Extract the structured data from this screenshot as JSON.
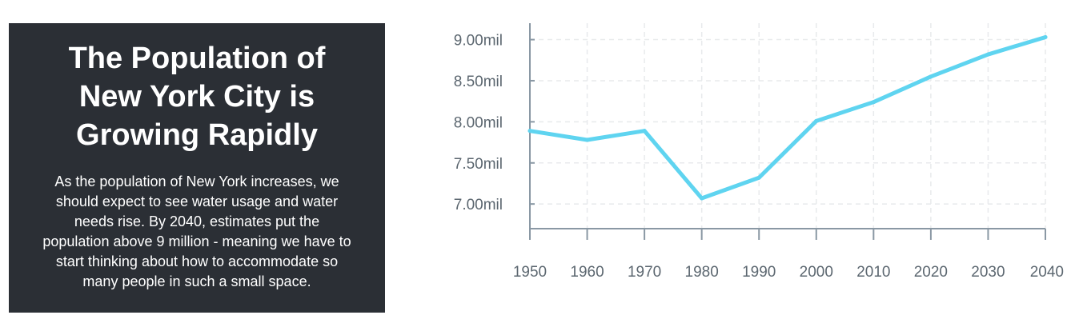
{
  "panel": {
    "title_lines": [
      "The Population of",
      "New York City is",
      "Growing Rapidly"
    ],
    "body": "As the population of New York increases, we should expect to see water usage and water needs rise. By 2040, estimates put the population above 9 million - meaning we have to start thinking about how to accommodate so many people in such a small space."
  },
  "chart_data": {
    "type": "line",
    "title": "",
    "xlabel": "",
    "ylabel": "",
    "x": [
      "1950",
      "1960",
      "1970",
      "1980",
      "1990",
      "2000",
      "2010",
      "2020",
      "2030",
      "2040"
    ],
    "series": [
      {
        "values": [
          7.89,
          7.78,
          7.89,
          7.07,
          7.32,
          8.01,
          8.24,
          8.55,
          8.82,
          9.03
        ]
      }
    ],
    "y_ticks": [
      {
        "value": 7.0,
        "label": "7.00mil"
      },
      {
        "value": 7.5,
        "label": "7.50mil"
      },
      {
        "value": 8.0,
        "label": "8.00mil"
      },
      {
        "value": 8.5,
        "label": "8.50mil"
      },
      {
        "value": 9.0,
        "label": "9.00mil"
      }
    ],
    "ylim": [
      6.7,
      9.2
    ],
    "grid": true,
    "legend": "none",
    "colors": {
      "line": "#5fd4f0",
      "axis": "#8a98a4",
      "grid": "#e8eaec",
      "tick_text": "#5c6770"
    }
  }
}
